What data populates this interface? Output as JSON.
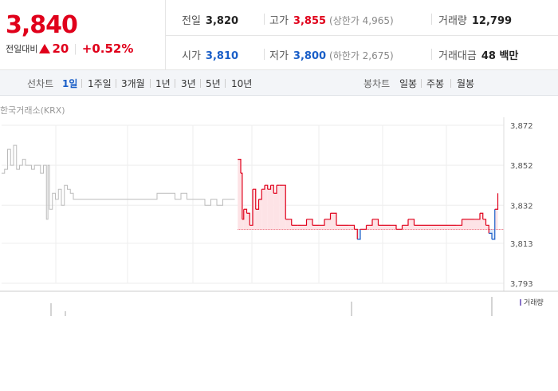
{
  "quote": {
    "price": "3,840",
    "change_label": "전일대비",
    "change_amount": "20",
    "change_pct": "+0.52%",
    "prev_close_label": "전일",
    "prev_close": "3,820",
    "high_label": "고가",
    "high": "3,855",
    "upper_limit": "(상한가 4,965)",
    "volume_label": "거래량",
    "volume": "12,799",
    "open_label": "시가",
    "open": "3,810",
    "low_label": "저가",
    "low": "3,800",
    "lower_limit": "(하한가 2,675)",
    "value_label": "거래대금",
    "value": "48 백만"
  },
  "tabs": {
    "line_label": "선차트",
    "line_items": [
      "1일",
      "1주일",
      "3개월",
      "1년",
      "3년",
      "5년",
      "10년"
    ],
    "line_active": 0,
    "candle_label": "봉차트",
    "candle_items": [
      "일봉",
      "주봉",
      "월봉"
    ]
  },
  "chart": {
    "source": "한국거래소(KRX)",
    "y_ticks": [
      "3,872",
      "3,852",
      "3,832",
      "3,813",
      "3,793"
    ],
    "volume_legend": "거래량",
    "colors": {
      "up": "#e0001b",
      "down": "#1a5fc8",
      "pre": "#bbbbbb",
      "grid": "#eeeeee",
      "volume": "#8a73c8"
    }
  },
  "chart_data": {
    "type": "line",
    "ylim": [
      3793,
      3872
    ],
    "baseline": 3820,
    "pre_market": [
      [
        0,
        3848
      ],
      [
        1,
        3850
      ],
      [
        2,
        3860
      ],
      [
        3,
        3852
      ],
      [
        4,
        3862
      ],
      [
        5,
        3850
      ],
      [
        6,
        3852
      ],
      [
        7,
        3855
      ],
      [
        8,
        3852
      ],
      [
        9,
        3852
      ],
      [
        10,
        3850
      ],
      [
        11,
        3852
      ],
      [
        12,
        3852
      ],
      [
        13,
        3848
      ],
      [
        14,
        3852
      ],
      [
        15,
        3825
      ],
      [
        15.5,
        3852
      ],
      [
        16,
        3830
      ],
      [
        17,
        3838
      ],
      [
        18,
        3835
      ],
      [
        19,
        3840
      ],
      [
        20,
        3832
      ],
      [
        21,
        3842
      ],
      [
        22,
        3840
      ],
      [
        23,
        3838
      ],
      [
        24,
        3835
      ],
      [
        25,
        3835
      ],
      [
        26,
        3835
      ],
      [
        27,
        3835
      ],
      [
        28,
        3835
      ],
      [
        30,
        3835
      ],
      [
        32,
        3835
      ],
      [
        34,
        3835
      ],
      [
        36,
        3835
      ],
      [
        38,
        3835
      ],
      [
        40,
        3835
      ],
      [
        42,
        3835
      ],
      [
        44,
        3835
      ],
      [
        46,
        3835
      ],
      [
        48,
        3835
      ],
      [
        50,
        3835
      ],
      [
        52,
        3838
      ],
      [
        54,
        3838
      ],
      [
        56,
        3838
      ],
      [
        58,
        3835
      ],
      [
        60,
        3838
      ],
      [
        62,
        3835
      ],
      [
        64,
        3835
      ],
      [
        66,
        3835
      ],
      [
        68,
        3832
      ],
      [
        70,
        3835
      ],
      [
        72,
        3832
      ],
      [
        74,
        3835
      ],
      [
        76,
        3835
      ],
      [
        78,
        3835
      ]
    ],
    "session": [
      [
        79,
        3855
      ],
      [
        80,
        3848
      ],
      [
        80.5,
        3825
      ],
      [
        81,
        3830
      ],
      [
        82,
        3828
      ],
      [
        83,
        3822
      ],
      [
        84,
        3840
      ],
      [
        85,
        3830
      ],
      [
        86,
        3835
      ],
      [
        87,
        3840
      ],
      [
        88,
        3842
      ],
      [
        89,
        3840
      ],
      [
        90,
        3842
      ],
      [
        91,
        3838
      ],
      [
        92,
        3842
      ],
      [
        93,
        3842
      ],
      [
        94,
        3842
      ],
      [
        95,
        3825
      ],
      [
        96,
        3825
      ],
      [
        97,
        3822
      ],
      [
        98,
        3822
      ],
      [
        99,
        3822
      ],
      [
        100,
        3822
      ],
      [
        102,
        3825
      ],
      [
        104,
        3822
      ],
      [
        106,
        3822
      ],
      [
        108,
        3825
      ],
      [
        110,
        3828
      ],
      [
        112,
        3822
      ],
      [
        114,
        3822
      ],
      [
        116,
        3822
      ],
      [
        118,
        3820
      ],
      [
        119,
        3815
      ],
      [
        120,
        3820
      ],
      [
        122,
        3822
      ],
      [
        124,
        3825
      ],
      [
        126,
        3822
      ],
      [
        128,
        3822
      ],
      [
        130,
        3822
      ],
      [
        132,
        3820
      ],
      [
        134,
        3822
      ],
      [
        136,
        3825
      ],
      [
        138,
        3822
      ],
      [
        140,
        3822
      ],
      [
        142,
        3822
      ],
      [
        144,
        3822
      ],
      [
        146,
        3822
      ],
      [
        148,
        3822
      ],
      [
        150,
        3822
      ],
      [
        152,
        3822
      ],
      [
        154,
        3825
      ],
      [
        156,
        3825
      ],
      [
        158,
        3825
      ],
      [
        160,
        3828
      ],
      [
        161,
        3825
      ],
      [
        162,
        3822
      ],
      [
        163,
        3818
      ],
      [
        164,
        3815
      ],
      [
        165,
        3830
      ],
      [
        166,
        3838
      ]
    ]
  }
}
